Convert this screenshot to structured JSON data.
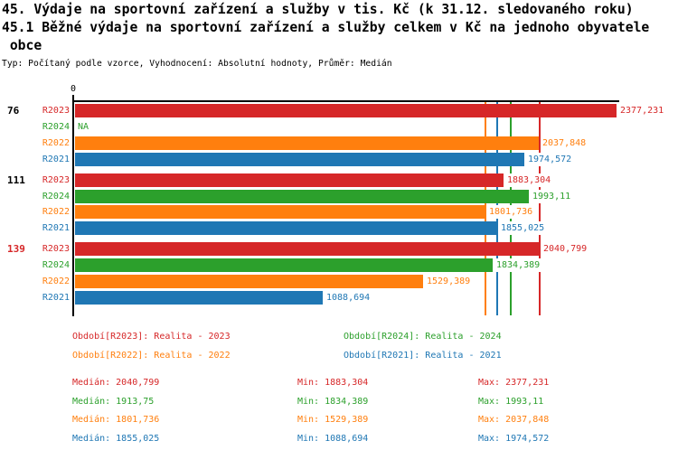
{
  "header": {
    "line1": "45. Výdaje na sportovní zařízení a služby v tis. Kč (k 31.12. sledovaného roku)",
    "line2": "45.1 Běžné výdaje na sportovní zařízení a služby celkem v Kč na jednoho obyvatele",
    "line3": " obce",
    "meta": "Typ: Počítaný podle vzorce, Vyhodnocení: Absolutní hodnoty, Průměr: Medián"
  },
  "chart_data": {
    "type": "bar",
    "orientation": "horizontal",
    "title": "45.1 Běžné výdaje na sportovní zařízení a služby celkem v Kč na jednoho obyvatele obce",
    "x_tick_label": "0",
    "xlim": [
      0,
      2410
    ],
    "grid": false,
    "series_colors": {
      "R2023": "#d62728",
      "R2024": "#2ca02c",
      "R2022": "#ff7f0e",
      "R2021": "#1f77b4"
    },
    "groups": [
      {
        "label": "76",
        "label_color": "#000000",
        "bars": [
          {
            "series": "R2023",
            "value": 2377.231,
            "display": "2377,231"
          },
          {
            "series": "R2024",
            "value": null,
            "display": "NA"
          },
          {
            "series": "R2022",
            "value": 2037.848,
            "display": "2037,848"
          },
          {
            "series": "R2021",
            "value": 1974.572,
            "display": "1974,572"
          }
        ]
      },
      {
        "label": "111",
        "label_color": "#000000",
        "bars": [
          {
            "series": "R2023",
            "value": 1883.304,
            "display": "1883,304"
          },
          {
            "series": "R2024",
            "value": 1993.11,
            "display": "1993,11"
          },
          {
            "series": "R2022",
            "value": 1801.736,
            "display": "1801,736"
          },
          {
            "series": "R2021",
            "value": 1855.025,
            "display": "1855,025"
          }
        ]
      },
      {
        "label": "139",
        "label_color": "#d62728",
        "bars": [
          {
            "series": "R2023",
            "value": 2040.799,
            "display": "2040,799"
          },
          {
            "series": "R2024",
            "value": 1834.389,
            "display": "1834,389"
          },
          {
            "series": "R2022",
            "value": 1529.389,
            "display": "1529,389"
          },
          {
            "series": "R2021",
            "value": 1088.694,
            "display": "1088,694"
          }
        ]
      }
    ],
    "median_lines": [
      {
        "series": "R2022",
        "value": 1801.736
      },
      {
        "series": "R2021",
        "value": 1855.025
      },
      {
        "series": "R2024",
        "value": 1913.75
      },
      {
        "series": "R2023",
        "value": 2040.799
      }
    ]
  },
  "legend": {
    "items": [
      {
        "text": "Období[R2023]: Realita - 2023",
        "color": "#d62728"
      },
      {
        "text": "Období[R2024]: Realita - 2024",
        "color": "#2ca02c"
      },
      {
        "text": "Období[R2022]: Realita - 2022",
        "color": "#ff7f0e"
      },
      {
        "text": "Období[R2021]: Realita - 2021",
        "color": "#1f77b4"
      }
    ]
  },
  "stats": {
    "rows": [
      {
        "color": "#d62728",
        "median_text": "Medián: 2040,799",
        "min_text": "Min: 1883,304",
        "max_text": "Max: 2377,231"
      },
      {
        "color": "#2ca02c",
        "median_text": "Medián: 1913,75",
        "min_text": "Min: 1834,389",
        "max_text": "Max: 1993,11"
      },
      {
        "color": "#ff7f0e",
        "median_text": "Medián: 1801,736",
        "min_text": "Min: 1529,389",
        "max_text": "Max: 2037,848"
      },
      {
        "color": "#1f77b4",
        "median_text": "Medián: 1855,025",
        "min_text": "Min: 1088,694",
        "max_text": "Max: 1974,572"
      }
    ]
  }
}
